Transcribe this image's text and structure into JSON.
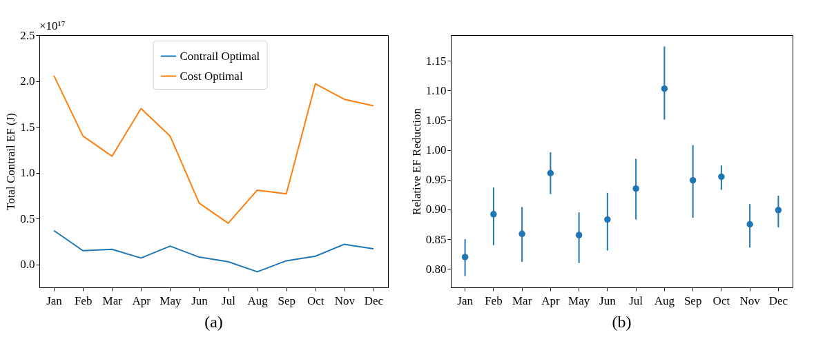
{
  "chart_data": [
    {
      "type": "line",
      "title": "(a)",
      "ylabel": "Total Contrail EF (J)",
      "annotations": [
        "×10¹⁷"
      ],
      "categories": [
        "Jan",
        "Feb",
        "Mar",
        "Apr",
        "May",
        "Jun",
        "Jul",
        "Aug",
        "Sep",
        "Oct",
        "Nov",
        "Dec"
      ],
      "series": [
        {
          "name": "Contrail Optimal",
          "color": "#1f77b4",
          "values": [
            0.37,
            0.15,
            0.165,
            0.07,
            0.2,
            0.08,
            0.03,
            -0.08,
            0.04,
            0.09,
            0.22,
            0.17
          ]
        },
        {
          "name": "Cost Optimal",
          "color": "#ff7f0e",
          "values": [
            2.06,
            1.4,
            1.18,
            1.7,
            1.4,
            0.67,
            0.45,
            0.81,
            0.77,
            1.97,
            1.8,
            1.73
          ]
        }
      ],
      "ylim": [
        -0.25,
        2.5
      ],
      "yticks": [
        {
          "value": 0,
          "label": "0.0"
        },
        0.5,
        {
          "value": 1,
          "label": "1.0"
        },
        1.5,
        {
          "value": 2,
          "label": "2.0"
        },
        2.5
      ],
      "legend": "top",
      "grid": false,
      "line_style": "solid",
      "marker": "none"
    },
    {
      "type": "scatter",
      "title": "(b)",
      "ylabel": "Relative EF Reduction",
      "categories": [
        "Jan",
        "Feb",
        "Mar",
        "Apr",
        "May",
        "Jun",
        "Jul",
        "Aug",
        "Sep",
        "Oct",
        "Nov",
        "Dec"
      ],
      "series": [
        {
          "color": "#1f77b4",
          "values": [
            0.82,
            0.892,
            0.859,
            0.961,
            0.857,
            0.883,
            0.935,
            1.103,
            0.949,
            0.955,
            0.875,
            0.899
          ],
          "errors": [
            [
              0.788,
              0.85
            ],
            [
              0.84,
              0.937
            ],
            [
              0.812,
              0.904
            ],
            [
              0.926,
              0.996
            ],
            [
              0.81,
              0.895
            ],
            [
              0.831,
              0.928
            ],
            [
              0.883,
              0.985
            ],
            [
              1.051,
              1.174
            ],
            [
              0.886,
              1.008
            ],
            [
              0.933,
              0.974
            ],
            [
              0.836,
              0.909
            ],
            [
              0.87,
              0.923
            ]
          ]
        }
      ],
      "ylim": [
        0.769,
        1.193
      ],
      "yticks": [
        {
          "value": 0.8,
          "label": "0.80"
        },
        0.85,
        {
          "value": 0.9,
          "label": "0.90"
        },
        0.95,
        {
          "value": 1,
          "label": "1.00"
        },
        1.05,
        {
          "value": 1.1,
          "label": "1.10"
        },
        1.15
      ],
      "grid": false,
      "marker": "circle"
    }
  ]
}
